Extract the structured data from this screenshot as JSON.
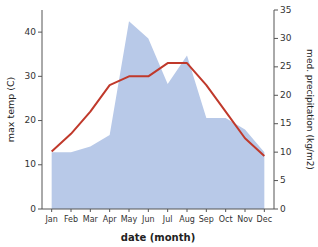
{
  "chart_data": {
    "type": "line",
    "categories": [
      "Jan",
      "Feb",
      "Mar",
      "Apr",
      "May",
      "Jun",
      "Jul",
      "Aug",
      "Sep",
      "Oct",
      "Nov",
      "Dec"
    ],
    "xlabel": "date (month)",
    "ylabel": "max temp (C)",
    "y2label": "med. precipitation (kg/m2)",
    "ylim": [
      0,
      45
    ],
    "yticks": [
      0,
      10,
      20,
      30,
      40
    ],
    "y2lim": [
      0,
      35
    ],
    "y2ticks": [
      0,
      5,
      10,
      15,
      20,
      25,
      30,
      35
    ],
    "series": [
      {
        "type": "area",
        "axis": "y2",
        "color": "#b8c9e8",
        "values": [
          10,
          10,
          11,
          13,
          33,
          30,
          22,
          27,
          16,
          16,
          14,
          10
        ]
      },
      {
        "type": "line",
        "color": "#c0392b",
        "values": [
          13,
          17,
          22,
          28,
          30,
          30,
          33,
          33,
          28,
          22,
          16,
          12
        ]
      }
    ]
  }
}
